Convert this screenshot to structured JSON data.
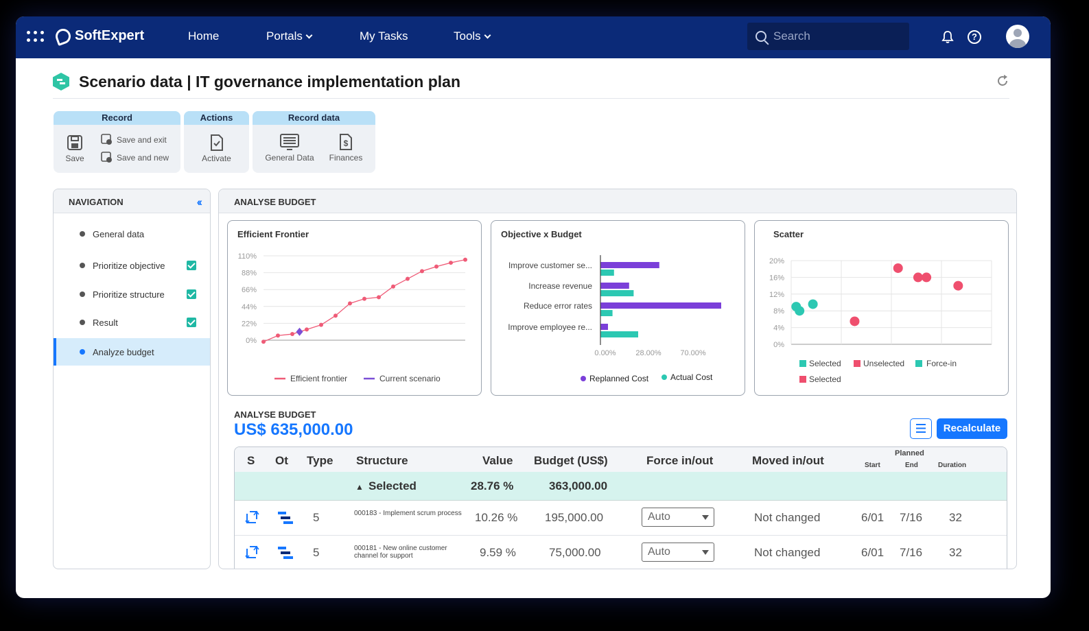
{
  "topbar": {
    "brand": "SoftExpert",
    "nav": {
      "home": "Home",
      "portals": "Portals",
      "tasks": "My Tasks",
      "tools": "Tools"
    },
    "search_placeholder": "Search"
  },
  "page": {
    "title": "Scenario data | IT governance implementation plan"
  },
  "toolbar": {
    "record": {
      "header": "Record",
      "save": "Save",
      "save_exit": "Save and exit",
      "save_new": "Save and new"
    },
    "actions": {
      "header": "Actions",
      "activate": "Activate"
    },
    "record_data": {
      "header": "Record data",
      "general": "General Data",
      "finances": "Finances"
    }
  },
  "navigation": {
    "title": "NAVIGATION",
    "items": [
      {
        "label": "General data",
        "checked": false,
        "active": false
      },
      {
        "label": "Prioritize objective",
        "checked": true,
        "active": false
      },
      {
        "label": "Prioritize structure",
        "checked": true,
        "active": false
      },
      {
        "label": "Result",
        "checked": true,
        "active": false
      },
      {
        "label": "Analyze budget",
        "checked": false,
        "active": true
      }
    ]
  },
  "main": {
    "title": "ANALYSE BUDGET",
    "budget_label": "ANALYSE BUDGET",
    "budget_amount": "US$ 635,000.00",
    "recalculate": "Recalculate"
  },
  "chart_data": [
    {
      "type": "line",
      "title": "Efficient Frontier",
      "y_ticks": [
        "110%",
        "88%",
        "66%",
        "44%",
        "22%",
        "0%"
      ],
      "ylim": [
        0,
        110
      ],
      "series": [
        {
          "name": "Efficient frontier",
          "color": "#ef5b77",
          "points": [
            [
              0,
              -2
            ],
            [
              1,
              6
            ],
            [
              2,
              8
            ],
            [
              3,
              14
            ],
            [
              4,
              20
            ],
            [
              5,
              32
            ],
            [
              6,
              48
            ],
            [
              7,
              54
            ],
            [
              8,
              56
            ],
            [
              9,
              70
            ],
            [
              10,
              80
            ],
            [
              11,
              90
            ],
            [
              12,
              96
            ],
            [
              13,
              101
            ],
            [
              14,
              105
            ]
          ]
        },
        {
          "name": "Current scenario",
          "color": "#7b4fd6",
          "points": [
            [
              2.5,
              11
            ]
          ]
        }
      ]
    },
    {
      "type": "bar",
      "title": "Objective x Budget",
      "categories": [
        "Improve customer se...",
        "Increase revenue",
        "Reduce error rates",
        "Improve employee re..."
      ],
      "x_ticks": [
        "0.00%",
        "28.00%",
        "70.00%"
      ],
      "xlim": [
        0,
        80
      ],
      "series": [
        {
          "name": "Replanned Cost",
          "color": "#7b3fd9",
          "values": [
            39,
            19,
            80,
            5
          ]
        },
        {
          "name": "Actual Cost",
          "color": "#2cc8b2",
          "values": [
            9,
            22,
            8,
            25
          ]
        }
      ]
    },
    {
      "type": "scatter",
      "title": "Scatter",
      "y_ticks": [
        "20%",
        "16%",
        "12%",
        "8%",
        "4%",
        "0%"
      ],
      "ylim": [
        0,
        20
      ],
      "legend": [
        {
          "label": "Selected",
          "color": "#2cc8b2"
        },
        {
          "label": "Unselected",
          "color": "#ef4f6e"
        },
        {
          "label": "Force-in",
          "color": "#2cc8b2"
        },
        {
          "label": "Selected",
          "color": "#ef4f6e"
        }
      ],
      "series": [
        {
          "name": "Selected",
          "color": "#2cc8b2",
          "points": [
            [
              0.3,
              9
            ],
            [
              0.5,
              8
            ],
            [
              1.3,
              9.6
            ]
          ]
        },
        {
          "name": "Unselected",
          "color": "#ef4f6e",
          "points": [
            [
              3.8,
              5.5
            ],
            [
              6.4,
              18.2
            ],
            [
              7.6,
              16
            ],
            [
              8.1,
              16
            ],
            [
              10,
              14
            ]
          ]
        }
      ]
    }
  ],
  "table": {
    "headers": {
      "s": "S",
      "ot": "Ot",
      "type": "Type",
      "structure": "Structure",
      "value": "Value",
      "budget": "Budget (US$)",
      "force": "Force in/out",
      "moved": "Moved in/out",
      "planned": "Planned",
      "start": "Start",
      "end": "End",
      "duration": "Duration"
    },
    "group": {
      "label": "Selected",
      "value": "28.76 %",
      "budget": "363,000.00"
    },
    "rows": [
      {
        "type": "5",
        "structure": "000183 - Implement scrum process",
        "value": "10.26 %",
        "budget": "195,000.00",
        "force": "Auto",
        "moved": "Not changed",
        "start": "6/01",
        "end": "7/16",
        "duration": "32"
      },
      {
        "type": "5",
        "structure": "000181 - New online customer channel for support",
        "value": "9.59 %",
        "budget": "75,000.00",
        "force": "Auto",
        "moved": "Not changed",
        "start": "6/01",
        "end": "7/16",
        "duration": "32"
      }
    ]
  }
}
